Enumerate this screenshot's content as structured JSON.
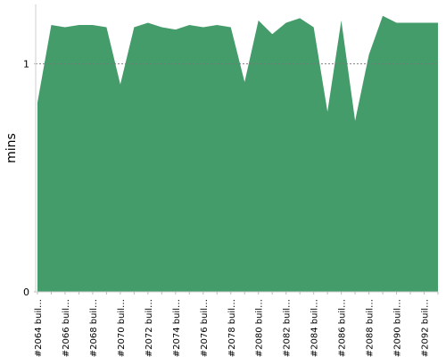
{
  "chart_data": {
    "type": "area",
    "y_label": "mins",
    "categories": [
      "#2064 buil…",
      null,
      "#2066 buil…",
      null,
      "#2068 buil…",
      null,
      "#2070 buil…",
      null,
      "#2072 buil…",
      null,
      "#2074 buil…",
      null,
      "#2076 buil…",
      null,
      "#2078 buil…",
      null,
      "#2080 buil…",
      null,
      "#2082 buil…",
      null,
      "#2084 buil…",
      null,
      "#2086 buil…",
      null,
      "#2088 buil…",
      null,
      "#2090 buil…",
      null,
      "#2092 buil…",
      null
    ],
    "values": [
      0.83,
      1.17,
      1.16,
      1.17,
      1.17,
      1.16,
      0.91,
      1.16,
      1.18,
      1.16,
      1.15,
      1.17,
      1.16,
      1.17,
      1.16,
      0.92,
      1.19,
      1.13,
      1.18,
      1.2,
      1.16,
      0.79,
      1.19,
      0.75,
      1.04,
      1.21,
      1.18,
      1.18,
      1.18,
      1.18
    ],
    "color": "#459c6b",
    "ylim": [
      0,
      1.26
    ],
    "yticks": [
      0,
      1
    ],
    "grid": true
  }
}
